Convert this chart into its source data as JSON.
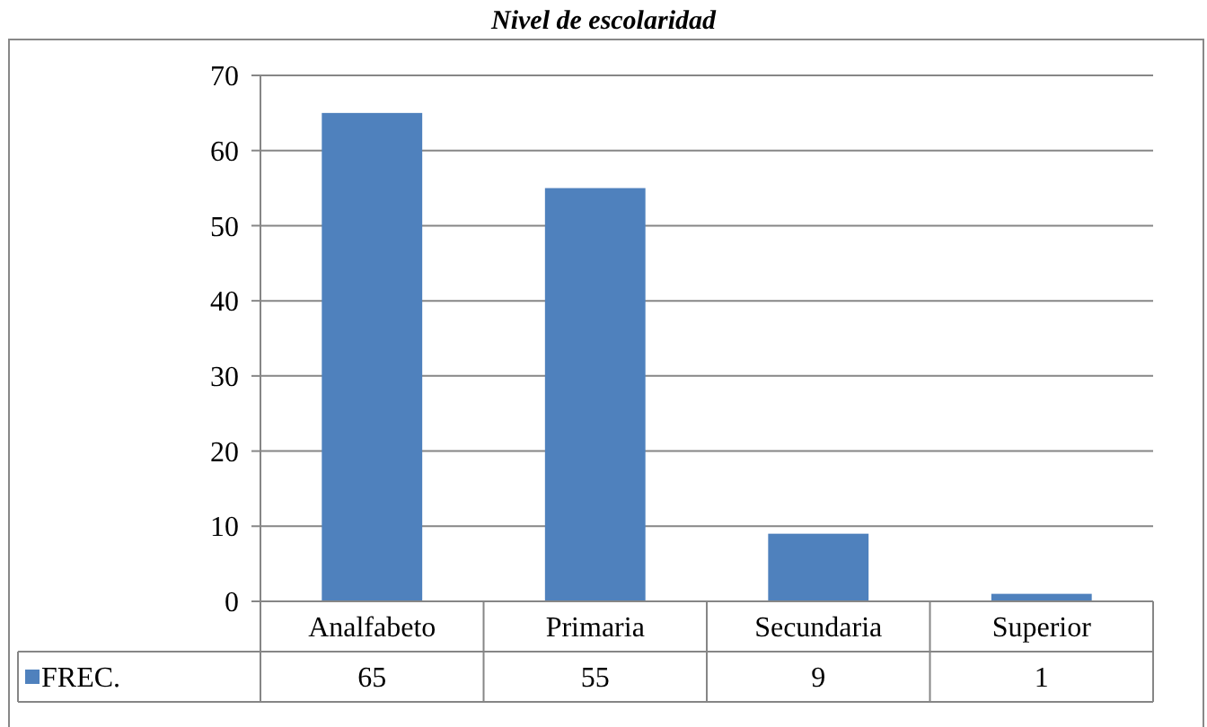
{
  "chart_data": {
    "type": "bar",
    "title": "Nivel de escolaridad",
    "categories": [
      "Analfabeto",
      "Primaria",
      "Secundaria",
      "Superior"
    ],
    "series": [
      {
        "name": "FREC.",
        "color": "#4f81bd",
        "values": [
          65,
          55,
          9,
          1
        ]
      }
    ],
    "ylim": [
      0,
      70
    ],
    "yticks": [
      0,
      10,
      20,
      30,
      40,
      50,
      60,
      70
    ],
    "grid": "y",
    "legend": "bottom",
    "data_labels": true
  }
}
